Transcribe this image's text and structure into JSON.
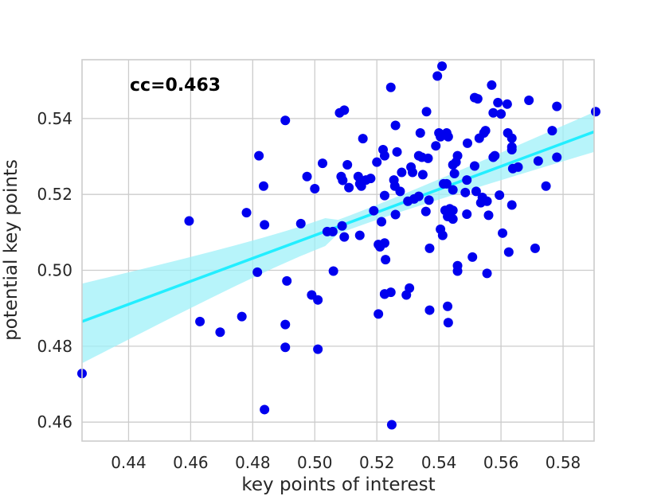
{
  "chart_data": {
    "type": "scatter",
    "xlabel": "key points of interest",
    "ylabel": "potential key points",
    "annotation": "cc=0.463",
    "xlim": [
      0.425,
      0.59
    ],
    "ylim": [
      0.455,
      0.5555
    ],
    "xticks": [
      "0.44",
      "0.46",
      "0.48",
      "0.50",
      "0.52",
      "0.54",
      "0.56",
      "0.58"
    ],
    "yticks": [
      "0.46",
      "0.48",
      "0.50",
      "0.52",
      "0.54"
    ],
    "grid": true,
    "colors": {
      "points": "#0000ee",
      "fit_line": "#22eeff",
      "ci_band": "#9ff0f8"
    },
    "regression": {
      "x": [
        0.425,
        0.59
      ],
      "y": [
        0.4865,
        0.5365
      ],
      "ci_upper": [
        0.4965,
        0.5417
      ],
      "ci_lower": [
        0.4755,
        0.5312
      ]
    },
    "points": [
      [
        0.425,
        0.4728
      ],
      [
        0.4595,
        0.513
      ],
      [
        0.463,
        0.4865
      ],
      [
        0.4695,
        0.4837
      ],
      [
        0.4765,
        0.4878
      ],
      [
        0.478,
        0.5152
      ],
      [
        0.4815,
        0.4995
      ],
      [
        0.482,
        0.5302
      ],
      [
        0.4835,
        0.5222
      ],
      [
        0.4838,
        0.512
      ],
      [
        0.4838,
        0.4633
      ],
      [
        0.4905,
        0.5395
      ],
      [
        0.491,
        0.4972
      ],
      [
        0.4905,
        0.4857
      ],
      [
        0.4905,
        0.4797
      ],
      [
        0.4955,
        0.5123
      ],
      [
        0.4975,
        0.5247
      ],
      [
        0.499,
        0.4935
      ],
      [
        0.5,
        0.5215
      ],
      [
        0.501,
        0.4922
      ],
      [
        0.501,
        0.4792
      ],
      [
        0.5025,
        0.5282
      ],
      [
        0.504,
        0.5102
      ],
      [
        0.5058,
        0.5102
      ],
      [
        0.506,
        0.4998
      ],
      [
        0.508,
        0.5415
      ],
      [
        0.5095,
        0.5422
      ],
      [
        0.5085,
        0.5247
      ],
      [
        0.509,
        0.5237
      ],
      [
        0.5088,
        0.5117
      ],
      [
        0.5095,
        0.5088
      ],
      [
        0.5105,
        0.5278
      ],
      [
        0.511,
        0.5218
      ],
      [
        0.514,
        0.5247
      ],
      [
        0.5145,
        0.5228
      ],
      [
        0.515,
        0.5222
      ],
      [
        0.5145,
        0.5092
      ],
      [
        0.5155,
        0.5347
      ],
      [
        0.5165,
        0.5238
      ],
      [
        0.518,
        0.5242
      ],
      [
        0.519,
        0.5157
      ],
      [
        0.52,
        0.5285
      ],
      [
        0.5205,
        0.5068
      ],
      [
        0.5205,
        0.4885
      ],
      [
        0.522,
        0.5318
      ],
      [
        0.521,
        0.5062
      ],
      [
        0.5225,
        0.5302
      ],
      [
        0.5225,
        0.5197
      ],
      [
        0.5215,
        0.5128
      ],
      [
        0.5225,
        0.5072
      ],
      [
        0.5228,
        0.5028
      ],
      [
        0.5225,
        0.4938
      ],
      [
        0.5225,
        0.4937
      ],
      [
        0.5245,
        0.4942
      ],
      [
        0.5245,
        0.5482
      ],
      [
        0.5248,
        0.4593
      ],
      [
        0.5255,
        0.5238
      ],
      [
        0.5258,
        0.5222
      ],
      [
        0.526,
        0.5382
      ],
      [
        0.5265,
        0.5312
      ],
      [
        0.526,
        0.5147
      ],
      [
        0.528,
        0.5258
      ],
      [
        0.5275,
        0.5208
      ],
      [
        0.5295,
        0.4935
      ],
      [
        0.53,
        0.5182
      ],
      [
        0.5305,
        0.4953
      ],
      [
        0.531,
        0.5272
      ],
      [
        0.5315,
        0.5258
      ],
      [
        0.532,
        0.5188
      ],
      [
        0.5335,
        0.5195
      ],
      [
        0.5335,
        0.5302
      ],
      [
        0.534,
        0.5362
      ],
      [
        0.5345,
        0.5298
      ],
      [
        0.5348,
        0.5252
      ],
      [
        0.5358,
        0.5155
      ],
      [
        0.536,
        0.5418
      ],
      [
        0.5365,
        0.5295
      ],
      [
        0.5368,
        0.5185
      ],
      [
        0.537,
        0.5058
      ],
      [
        0.537,
        0.4895
      ],
      [
        0.539,
        0.5328
      ],
      [
        0.5395,
        0.5512
      ],
      [
        0.5405,
        0.5352
      ],
      [
        0.54,
        0.5362
      ],
      [
        0.5405,
        0.5108
      ],
      [
        0.541,
        0.5538
      ],
      [
        0.5415,
        0.5228
      ],
      [
        0.5412,
        0.5092
      ],
      [
        0.542,
        0.5158
      ],
      [
        0.5425,
        0.5362
      ],
      [
        0.5425,
        0.5228
      ],
      [
        0.543,
        0.5352
      ],
      [
        0.5435,
        0.5162
      ],
      [
        0.5428,
        0.5142
      ],
      [
        0.5428,
        0.4905
      ],
      [
        0.543,
        0.4862
      ],
      [
        0.5445,
        0.5278
      ],
      [
        0.5445,
        0.5212
      ],
      [
        0.545,
        0.5255
      ],
      [
        0.5445,
        0.5158
      ],
      [
        0.5445,
        0.5135
      ],
      [
        0.5455,
        0.5285
      ],
      [
        0.546,
        0.5302
      ],
      [
        0.546,
        0.5012
      ],
      [
        0.546,
        0.4998
      ],
      [
        0.5485,
        0.5205
      ],
      [
        0.549,
        0.5238
      ],
      [
        0.549,
        0.5148
      ],
      [
        0.5492,
        0.5335
      ],
      [
        0.5508,
        0.5035
      ],
      [
        0.5515,
        0.5455
      ],
      [
        0.5515,
        0.5275
      ],
      [
        0.552,
        0.5208
      ],
      [
        0.5525,
        0.5452
      ],
      [
        0.553,
        0.5348
      ],
      [
        0.5535,
        0.5178
      ],
      [
        0.554,
        0.5192
      ],
      [
        0.5545,
        0.5362
      ],
      [
        0.555,
        0.5368
      ],
      [
        0.5555,
        0.5182
      ],
      [
        0.556,
        0.5145
      ],
      [
        0.5555,
        0.4992
      ],
      [
        0.557,
        0.5488
      ],
      [
        0.5575,
        0.5298
      ],
      [
        0.5575,
        0.5415
      ],
      [
        0.558,
        0.5302
      ],
      [
        0.559,
        0.5442
      ],
      [
        0.5595,
        0.5198
      ],
      [
        0.56,
        0.5412
      ],
      [
        0.5605,
        0.5098
      ],
      [
        0.562,
        0.5438
      ],
      [
        0.5622,
        0.5362
      ],
      [
        0.5625,
        0.5048
      ],
      [
        0.5635,
        0.5348
      ],
      [
        0.5635,
        0.5325
      ],
      [
        0.5635,
        0.5318
      ],
      [
        0.5635,
        0.5172
      ],
      [
        0.5638,
        0.5268
      ],
      [
        0.5655,
        0.5272
      ],
      [
        0.569,
        0.5448
      ],
      [
        0.571,
        0.5058
      ],
      [
        0.572,
        0.5288
      ],
      [
        0.5745,
        0.5222
      ],
      [
        0.5765,
        0.5368
      ],
      [
        0.578,
        0.5432
      ],
      [
        0.578,
        0.5298
      ],
      [
        0.5905,
        0.5418
      ]
    ]
  }
}
